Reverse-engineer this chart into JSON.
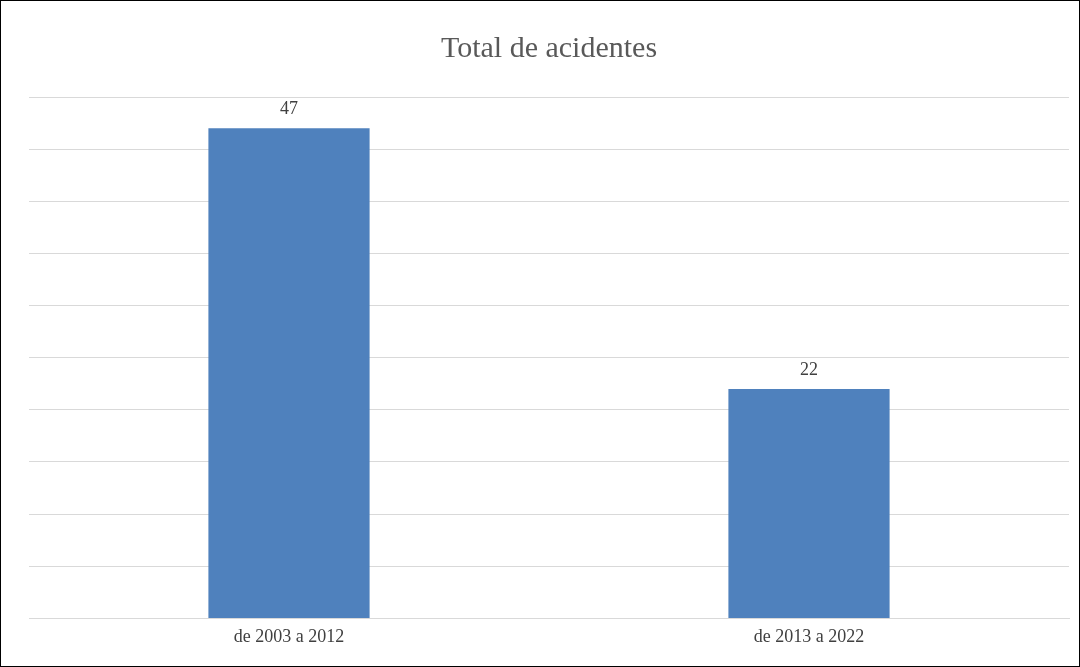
{
  "chart_data": {
    "type": "bar",
    "title": "Total de acidentes",
    "categories": [
      "de 2003 a 2012",
      "de 2013 a 2022"
    ],
    "values": [
      47,
      22
    ],
    "color": "#4f81bd",
    "ylim": [
      0,
      50
    ],
    "yticks": [
      0,
      5,
      10,
      15,
      20,
      25,
      30,
      35,
      40,
      45,
      50
    ],
    "grid": "y",
    "tick_labels": "x",
    "data_labels": true
  }
}
